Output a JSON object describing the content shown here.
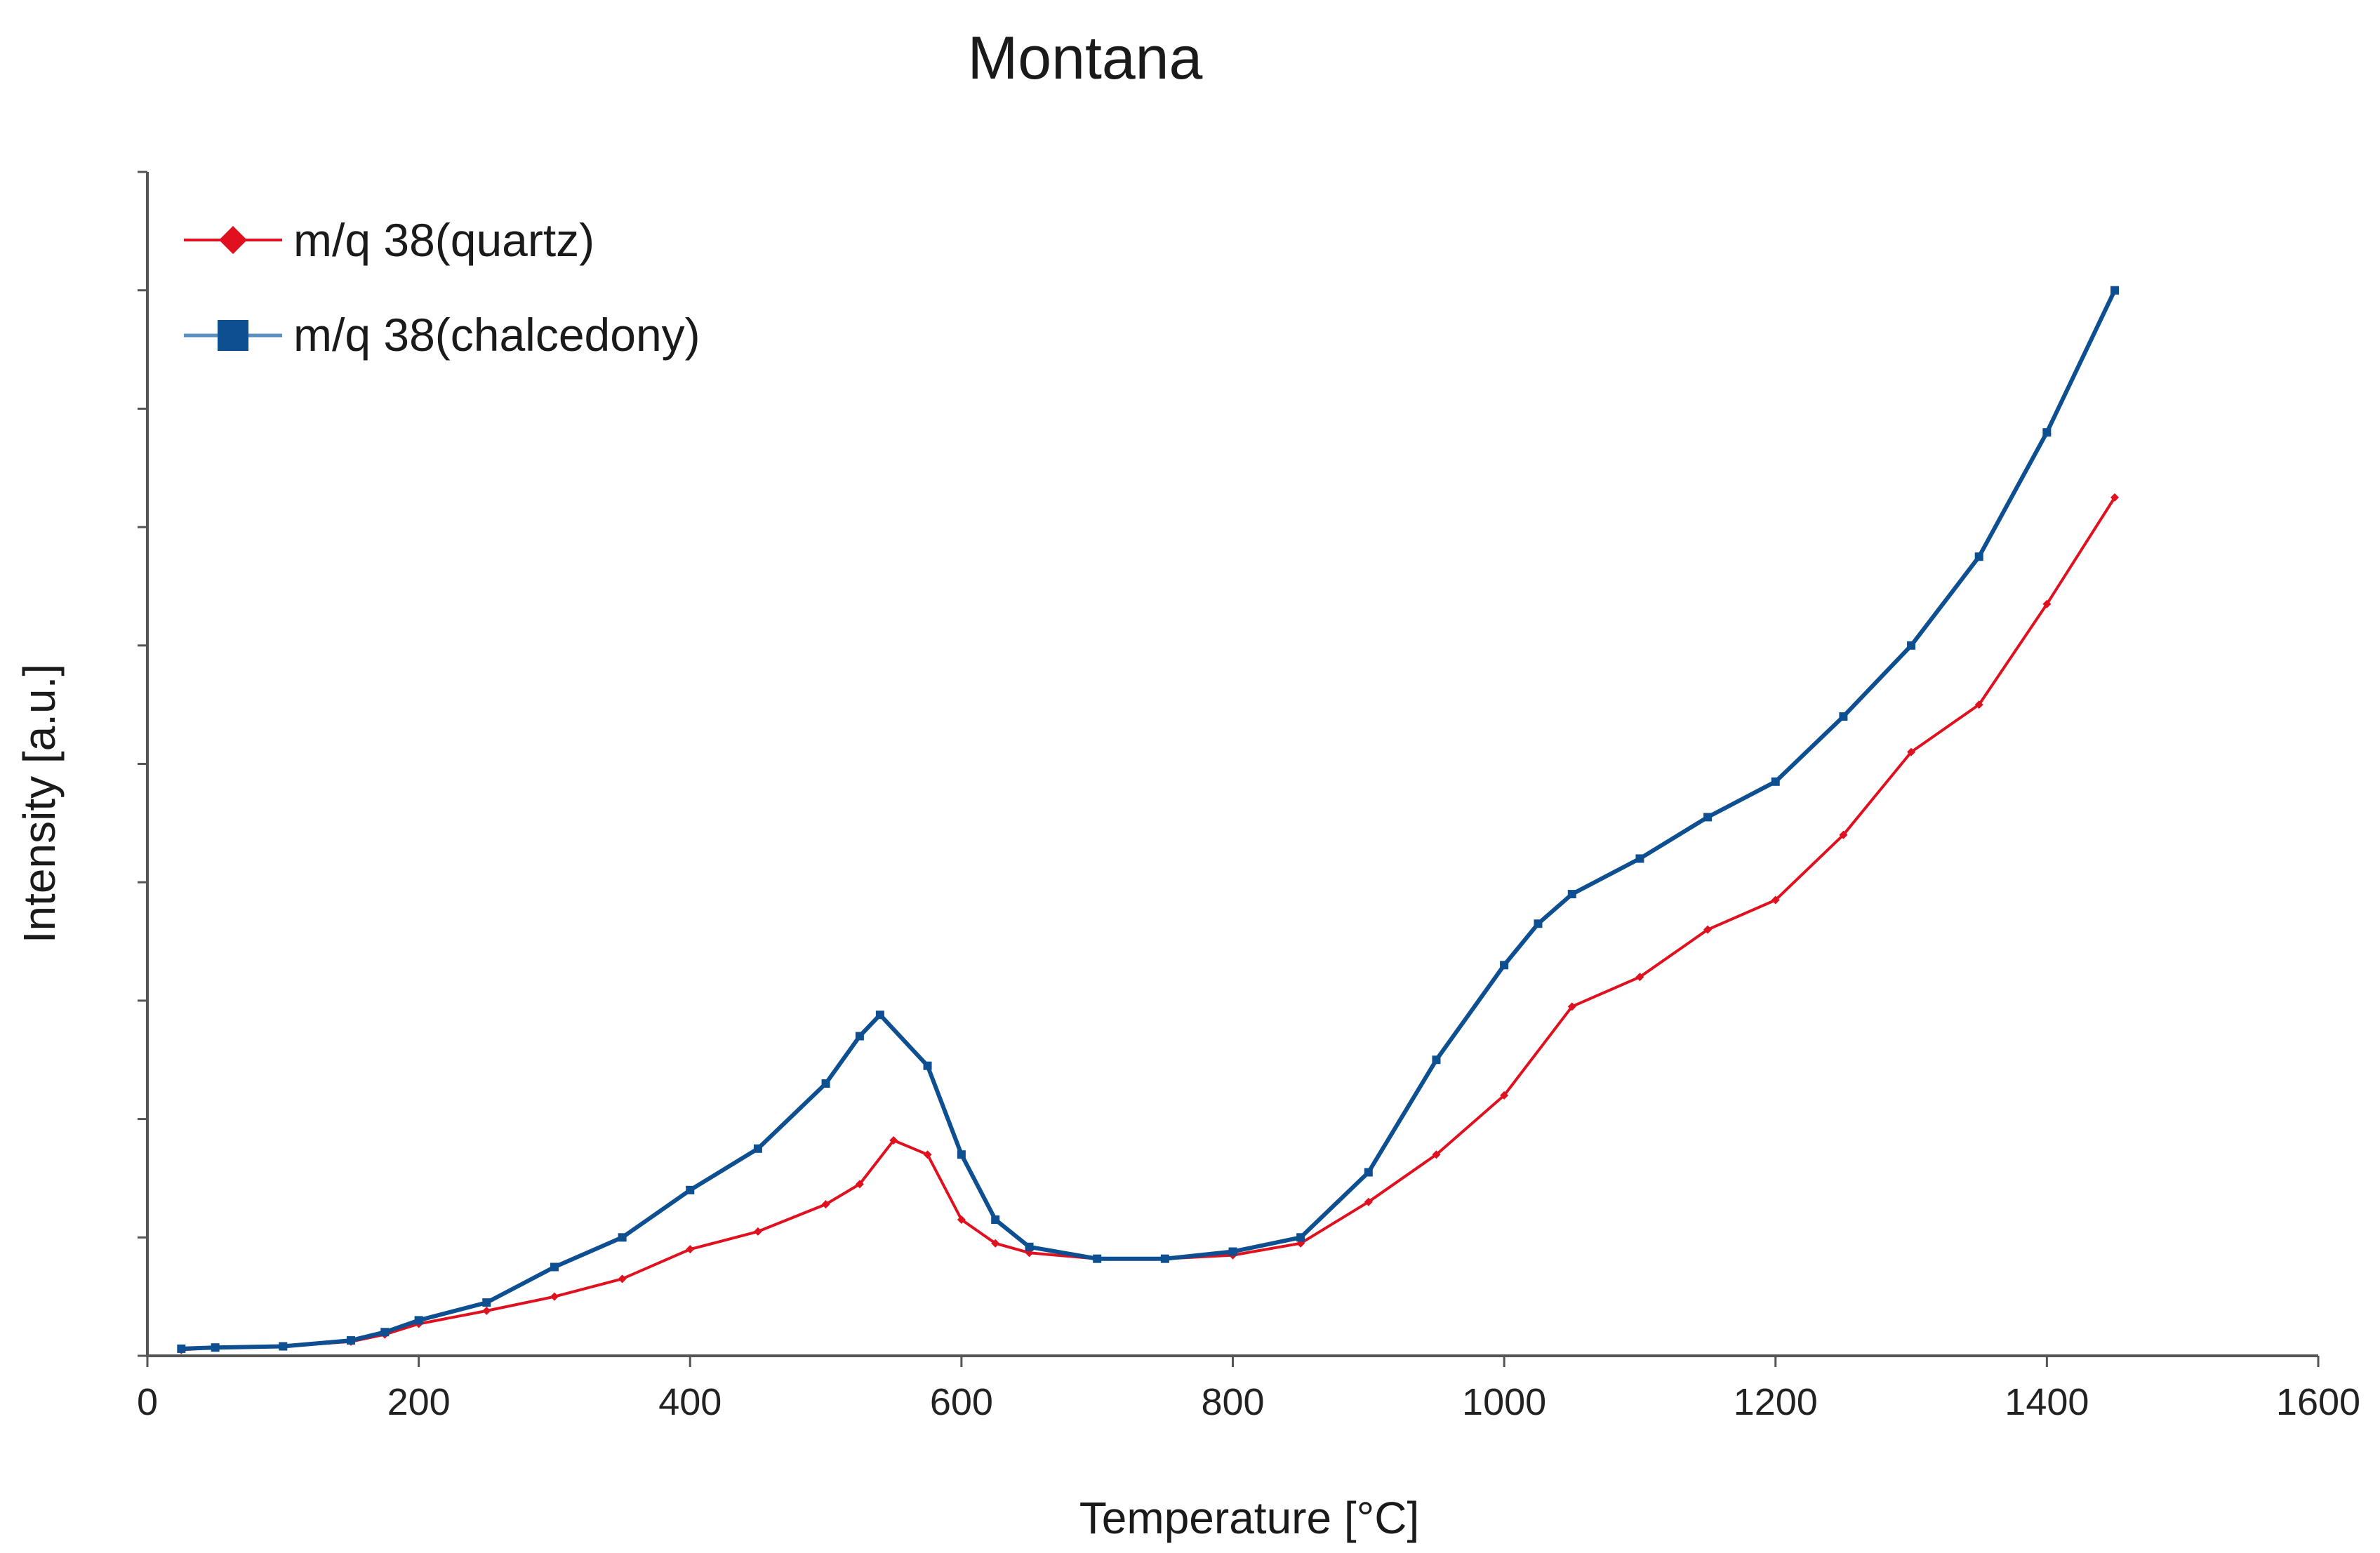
{
  "chart_data": {
    "type": "line",
    "title": "Montana",
    "xlabel": "Temperature [°C]",
    "ylabel": "Intensity [a.u.]",
    "xlim": [
      0,
      1600
    ],
    "ylim": [
      0,
      10
    ],
    "xticks": [
      0,
      200,
      400,
      600,
      800,
      1000,
      1200,
      1400,
      1600
    ],
    "yticks": [
      0,
      1,
      2,
      3,
      4,
      5,
      6,
      7,
      8,
      9,
      10
    ],
    "ytick_labels_visible": false,
    "grid": false,
    "legend_position": "top-left",
    "series": [
      {
        "name": "m/q 38(quartz)",
        "marker": "diamond",
        "color": "#e0101e",
        "x": [
          25,
          50,
          100,
          150,
          175,
          200,
          250,
          300,
          350,
          400,
          450,
          500,
          525,
          550,
          575,
          600,
          625,
          650,
          700,
          750,
          800,
          850,
          900,
          950,
          1000,
          1050,
          1100,
          1150,
          1200,
          1250,
          1300,
          1350,
          1400,
          1450
        ],
        "y": [
          0.05,
          0.07,
          0.08,
          0.12,
          0.18,
          0.27,
          0.38,
          0.5,
          0.65,
          0.9,
          1.05,
          1.28,
          1.45,
          1.82,
          1.7,
          1.15,
          0.95,
          0.87,
          0.82,
          0.82,
          0.85,
          0.95,
          1.3,
          1.7,
          2.2,
          2.95,
          3.2,
          3.6,
          3.85,
          4.4,
          5.1,
          5.5,
          6.35,
          7.25
        ]
      },
      {
        "name": "m/q 38(chalcedony)",
        "marker": "square",
        "color": "#0d4f91",
        "x": [
          25,
          50,
          100,
          150,
          175,
          200,
          250,
          300,
          350,
          400,
          450,
          500,
          525,
          540,
          575,
          600,
          625,
          650,
          700,
          750,
          800,
          850,
          900,
          950,
          1000,
          1025,
          1050,
          1100,
          1150,
          1200,
          1250,
          1300,
          1350,
          1400,
          1450
        ],
        "y": [
          0.06,
          0.07,
          0.08,
          0.13,
          0.2,
          0.3,
          0.45,
          0.75,
          1.0,
          1.4,
          1.75,
          2.3,
          2.7,
          2.88,
          2.45,
          1.7,
          1.15,
          0.92,
          0.82,
          0.82,
          0.88,
          1.0,
          1.55,
          2.5,
          3.3,
          3.65,
          3.9,
          4.2,
          4.55,
          4.85,
          5.4,
          6.0,
          6.75,
          7.8,
          9.0
        ]
      }
    ]
  }
}
